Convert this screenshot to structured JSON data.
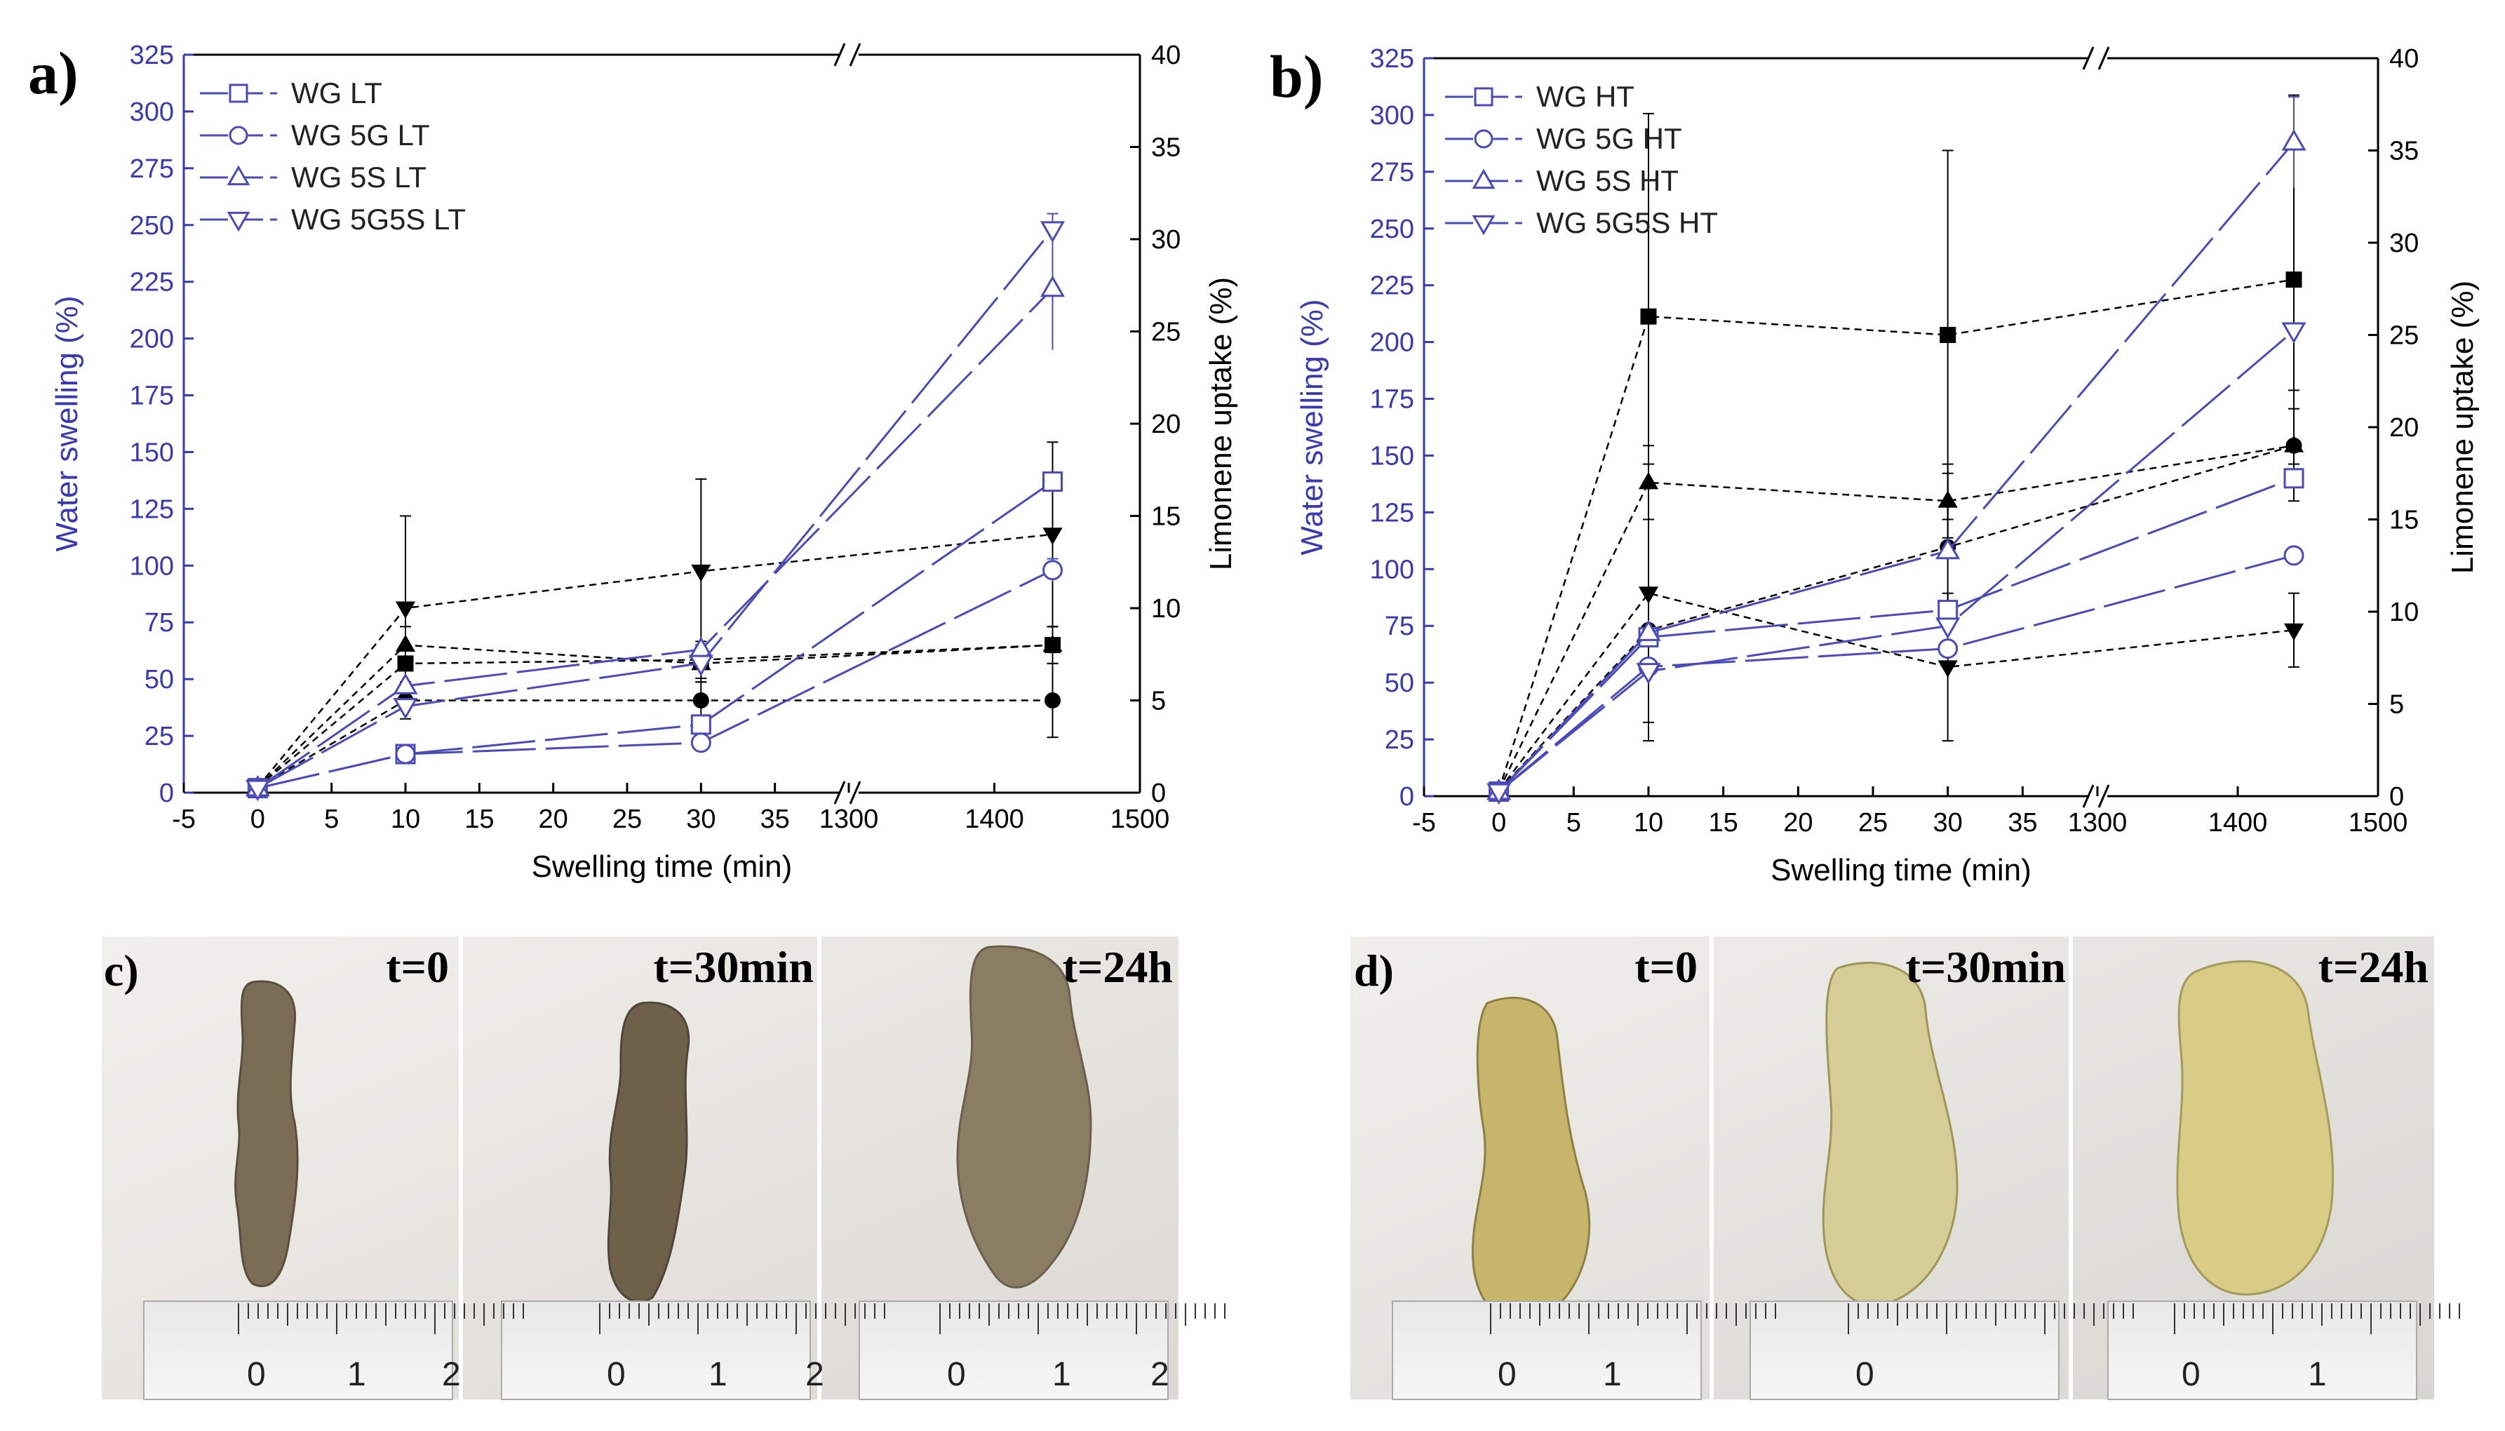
{
  "colors": {
    "axis_blue": "#3a3ab0",
    "series_blue": "#4a4ab8",
    "black": "#000000",
    "ruler_line": "#333333"
  },
  "chart_data": [
    {
      "type": "line",
      "panel": "a)",
      "title": "",
      "xlabel": "Swelling time (min)",
      "ylabel_left": "Water swelling (%)",
      "ylabel_right": "Limonene uptake (%)",
      "x_ticks_left_segment": [
        "-5",
        "0",
        "5",
        "10",
        "15",
        "20",
        "25",
        "30",
        "35"
      ],
      "x_ticks_right_segment": [
        "1300",
        "1400",
        "1500"
      ],
      "x_segment1_range": [
        -5,
        40
      ],
      "x_segment2_range": [
        1300,
        1500
      ],
      "ylim_left": [
        0,
        325
      ],
      "y_ticks_left": [
        "0",
        "25",
        "50",
        "75",
        "100",
        "125",
        "150",
        "175",
        "200",
        "225",
        "250",
        "275",
        "300",
        "325"
      ],
      "ylim_right": [
        0,
        40
      ],
      "y_ticks_right": [
        "0",
        "5",
        "10",
        "15",
        "20",
        "25",
        "30",
        "35",
        "40"
      ],
      "x": [
        0,
        10,
        30,
        1440
      ],
      "legend": [
        "WG LT",
        "WG 5G LT",
        "WG 5S LT",
        "WG 5G5S LT"
      ],
      "series": [
        {
          "name": "WG LT",
          "marker": "square",
          "axis": "left",
          "values": [
            2,
            17,
            30,
            137
          ],
          "err": [
            0,
            0,
            0,
            0
          ]
        },
        {
          "name": "WG 5G LT",
          "marker": "circle",
          "axis": "left",
          "values": [
            2,
            17,
            22,
            98
          ],
          "err": [
            0,
            0,
            0,
            5
          ]
        },
        {
          "name": "WG 5S LT",
          "marker": "triangle-up",
          "axis": "left",
          "values": [
            2,
            47,
            63,
            222
          ],
          "err": [
            0,
            0,
            0,
            27
          ]
        },
        {
          "name": "WG 5G5S LT",
          "marker": "triangle-down",
          "axis": "left",
          "values": [
            2,
            38,
            57,
            248
          ],
          "err": [
            0,
            0,
            0,
            7
          ]
        }
      ],
      "uptake_series": [
        {
          "marker": "square",
          "values": [
            0.3,
            7,
            7.2,
            8
          ],
          "err": [
            0,
            1,
            1,
            1
          ]
        },
        {
          "marker": "circle",
          "values": [
            0.3,
            5,
            5,
            5
          ],
          "err": [
            0,
            1,
            1,
            2
          ]
        },
        {
          "marker": "triangle-up",
          "values": [
            0.3,
            8,
            7,
            8
          ],
          "err": [
            0,
            1,
            1,
            1
          ]
        },
        {
          "marker": "triangle-down",
          "values": [
            0.3,
            10,
            12,
            14
          ],
          "err": [
            0,
            5,
            5,
            5
          ]
        }
      ]
    },
    {
      "type": "line",
      "panel": "b)",
      "title": "",
      "xlabel": "Swelling time (min)",
      "ylabel_left": "Water swelling (%)",
      "ylabel_right": "Limonene uptake (%)",
      "x_ticks_left_segment": [
        "-5",
        "0",
        "5",
        "10",
        "15",
        "20",
        "25",
        "30",
        "35"
      ],
      "x_ticks_right_segment": [
        "1300",
        "1400",
        "1500"
      ],
      "x_segment1_range": [
        -5,
        40
      ],
      "x_segment2_range": [
        1300,
        1500
      ],
      "ylim_left": [
        0,
        325
      ],
      "y_ticks_left": [
        "0",
        "25",
        "50",
        "75",
        "100",
        "125",
        "150",
        "175",
        "200",
        "225",
        "250",
        "275",
        "300",
        "325"
      ],
      "ylim_right": [
        0,
        40
      ],
      "y_ticks_right": [
        "0",
        "5",
        "10",
        "15",
        "20",
        "25",
        "30",
        "35",
        "40"
      ],
      "x": [
        0,
        10,
        30,
        1440
      ],
      "legend": [
        "WG HT",
        "WG 5G HT",
        "WG 5S HT",
        "WG 5G5S HT"
      ],
      "series": [
        {
          "name": "WG HT",
          "marker": "square",
          "axis": "left",
          "values": [
            2,
            70,
            82,
            140
          ],
          "err": [
            0,
            0,
            0,
            0
          ]
        },
        {
          "name": "WG 5G HT",
          "marker": "circle",
          "axis": "left",
          "values": [
            2,
            57,
            65,
            106
          ],
          "err": [
            0,
            0,
            0,
            0
          ]
        },
        {
          "name": "WG 5S HT",
          "marker": "triangle-up",
          "axis": "left",
          "values": [
            2,
            72,
            108,
            288
          ],
          "err": [
            0,
            0,
            0,
            20
          ]
        },
        {
          "name": "WG 5G5S HT",
          "marker": "triangle-down",
          "axis": "left",
          "values": [
            2,
            55,
            75,
            205
          ],
          "err": [
            0,
            0,
            0,
            0
          ]
        }
      ],
      "uptake_series": [
        {
          "marker": "square",
          "values": [
            0.3,
            26,
            25,
            28
          ],
          "err": [
            0,
            11,
            10,
            10
          ]
        },
        {
          "marker": "circle",
          "values": [
            0.3,
            9,
            13.5,
            19
          ],
          "err": [
            0,
            6,
            4,
            3
          ]
        },
        {
          "marker": "triangle-up",
          "values": [
            0.3,
            17,
            16,
            19
          ],
          "err": [
            0,
            2,
            2,
            2
          ]
        },
        {
          "marker": "triangle-down",
          "values": [
            0.3,
            11,
            7,
            9
          ],
          "err": [
            0,
            7,
            4,
            2
          ]
        }
      ]
    }
  ],
  "photos": {
    "c": {
      "panel": "c)",
      "labels": [
        "t=0",
        "t=30min",
        "t=24h"
      ],
      "ruler_numbers": [
        [
          "0",
          "1",
          "2"
        ],
        [
          "0",
          "1",
          "2"
        ],
        [
          "0",
          "1",
          "2"
        ]
      ]
    },
    "d": {
      "panel": "d)",
      "labels": [
        "t=0",
        "t=30min",
        "t=24h"
      ],
      "ruler_numbers": [
        [
          "0",
          "1"
        ],
        [
          "0"
        ],
        [
          "0",
          "1"
        ]
      ]
    }
  }
}
